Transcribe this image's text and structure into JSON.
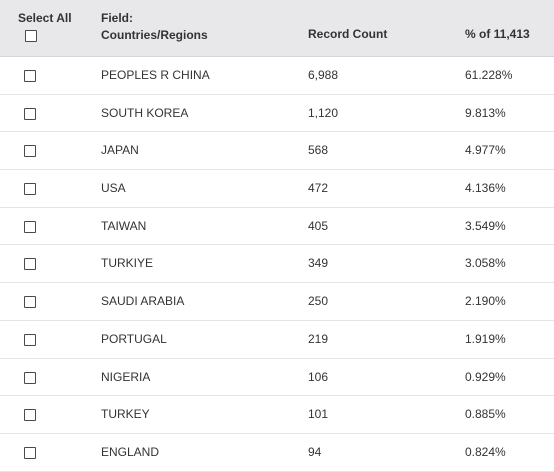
{
  "header": {
    "select_all_label": "Select All",
    "field_label": "Field:",
    "field_name": "Countries/Regions",
    "count_label": "Record Count",
    "percent_label": "% of 11,413"
  },
  "rows": [
    {
      "name": "PEOPLES R CHINA",
      "count": "6,988",
      "percent": "61.228%",
      "checked": false
    },
    {
      "name": "SOUTH KOREA",
      "count": "1,120",
      "percent": "9.813%",
      "checked": false
    },
    {
      "name": "JAPAN",
      "count": "568",
      "percent": "4.977%",
      "checked": false
    },
    {
      "name": "USA",
      "count": "472",
      "percent": "4.136%",
      "checked": false
    },
    {
      "name": "TAIWAN",
      "count": "405",
      "percent": "3.549%",
      "checked": false
    },
    {
      "name": "TURKIYE",
      "count": "349",
      "percent": "3.058%",
      "checked": false
    },
    {
      "name": "SAUDI ARABIA",
      "count": "250",
      "percent": "2.190%",
      "checked": false
    },
    {
      "name": "PORTUGAL",
      "count": "219",
      "percent": "1.919%",
      "checked": false
    },
    {
      "name": "NIGERIA",
      "count": "106",
      "percent": "0.929%",
      "checked": false
    },
    {
      "name": "TURKEY",
      "count": "101",
      "percent": "0.885%",
      "checked": false
    },
    {
      "name": "ENGLAND",
      "count": "94",
      "percent": "0.824%",
      "checked": false
    }
  ]
}
